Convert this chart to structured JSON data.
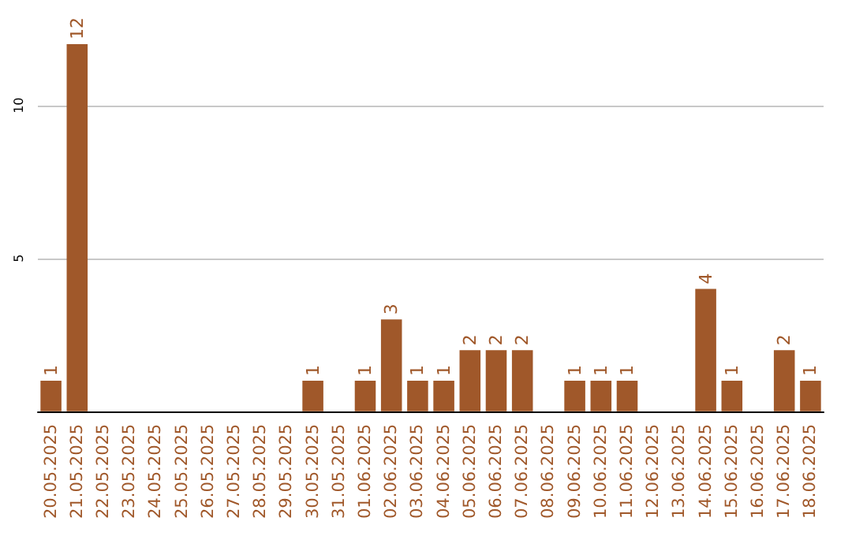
{
  "chart_data": {
    "type": "bar",
    "categories": [
      "20.05.2025",
      "21.05.2025",
      "22.05.2025",
      "23.05.2025",
      "24.05.2025",
      "25.05.2025",
      "26.05.2025",
      "27.05.2025",
      "28.05.2025",
      "29.05.2025",
      "30.05.2025",
      "31.05.2025",
      "01.06.2025",
      "02.06.2025",
      "03.06.2025",
      "04.06.2025",
      "05.06.2025",
      "06.06.2025",
      "07.06.2025",
      "08.06.2025",
      "09.06.2025",
      "10.06.2025",
      "11.06.2025",
      "12.06.2025",
      "13.06.2025",
      "14.06.2025",
      "15.06.2025",
      "16.06.2025",
      "17.06.2025",
      "18.06.2025"
    ],
    "values": [
      1,
      12,
      0,
      0,
      0,
      0,
      0,
      0,
      0,
      0,
      1,
      0,
      1,
      3,
      1,
      1,
      2,
      2,
      2,
      0,
      1,
      1,
      1,
      0,
      0,
      4,
      1,
      0,
      2,
      1
    ],
    "value_labels": [
      "1",
      "12",
      null,
      null,
      null,
      null,
      null,
      null,
      null,
      null,
      "1",
      null,
      "1",
      "3",
      "1",
      "1",
      "2",
      "2",
      "2",
      null,
      "1",
      "1",
      "1",
      null,
      null,
      "4",
      "1",
      null,
      "2",
      "1"
    ],
    "color": "#a0582a",
    "ylim": [
      0,
      12
    ],
    "yticks": [
      {
        "value": 0,
        "label": null
      },
      5,
      10
    ],
    "grid": "y"
  }
}
